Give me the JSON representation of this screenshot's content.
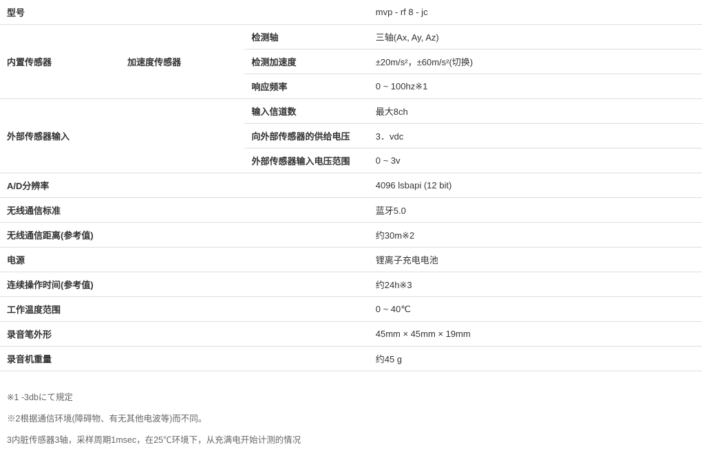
{
  "cols": {
    "c1": "17%",
    "c2": "17.5%",
    "c3": "17.5%",
    "c4": "47%"
  },
  "border_color": "#dddddd",
  "text_color": "#333333",
  "note_color": "#666666",
  "table": {
    "model": {
      "label": "型号",
      "value": "mvp - rf 8 - jc"
    },
    "internal": {
      "label": "内置传感器",
      "sublabel": "加速度传感器",
      "rows": [
        {
          "label": "检测轴",
          "value": "三轴(Ax, Ay, Az)"
        },
        {
          "label": "检测加速度",
          "value": "±20m/s²，±60m/s²(切换)"
        },
        {
          "label": "响应频率",
          "value": "0 ~ 100hz※1"
        }
      ]
    },
    "external": {
      "label": "外部传感器输入",
      "rows": [
        {
          "label": "输入信道数",
          "value": "最大8ch"
        },
        {
          "label": "向外部传感器的供给电压",
          "value": "3．vdc"
        },
        {
          "label": "外部传感器输入电压范围",
          "value": "0 ~ 3v"
        }
      ]
    },
    "simple": [
      {
        "label": "A/D分辨率",
        "value": "4096 lsbapi (12 bit)"
      },
      {
        "label": "无线通信标准",
        "value": "蓝牙5.0"
      },
      {
        "label": "无线通信距离(参考值)",
        "value": "约30m※2"
      },
      {
        "label": "电源",
        "value": "锂离子充电电池"
      },
      {
        "label": "连续操作时间(参考值)",
        "value": "约24h※3"
      },
      {
        "label": "工作温度范围",
        "value": "0 ~ 40℃"
      },
      {
        "label": "录音笔外形",
        "value": "45mm × 45mm × 19mm"
      },
      {
        "label": "录音机重量",
        "value": "约45 g"
      }
    ]
  },
  "notes": [
    "※1 -3dbにて規定",
    "※2根据通信环境(障碍物、有无其他电波等)而不同。",
    "3内脏传感器3轴，采样周期1msec，在25℃环境下，从充满电开始计测的情况"
  ]
}
